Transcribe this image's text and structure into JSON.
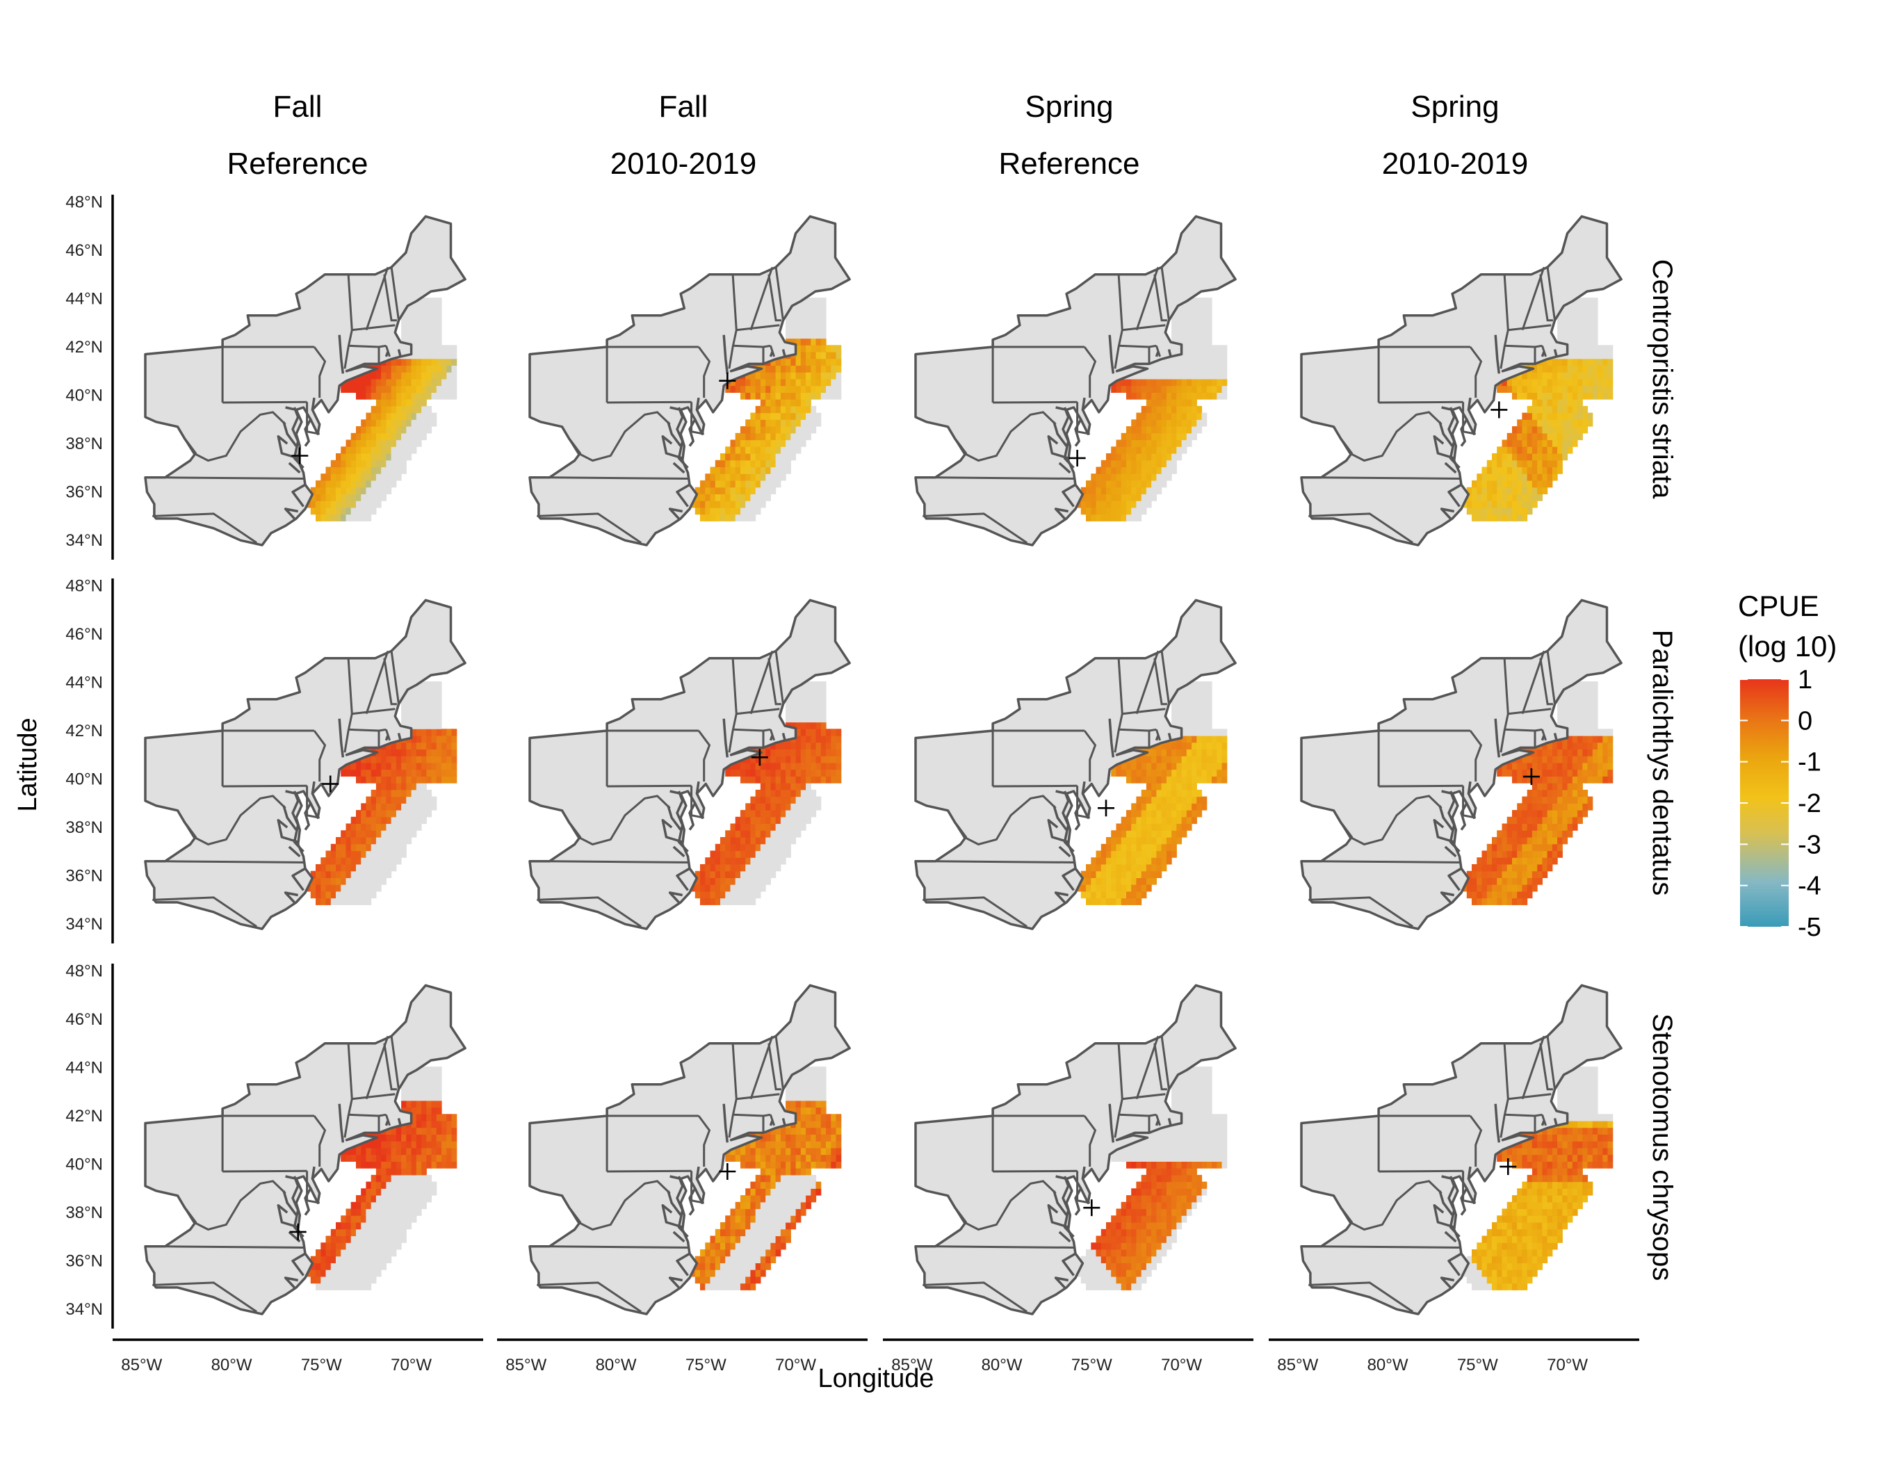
{
  "figure": {
    "columns": [
      {
        "line1": "Fall",
        "line2": "Reference"
      },
      {
        "line1": "Fall",
        "line2": "2010-2019"
      },
      {
        "line1": "Spring",
        "line2": "Reference"
      },
      {
        "line1": "Spring",
        "line2": "2010-2019"
      }
    ],
    "rows": [
      {
        "species": "Centropristis striata"
      },
      {
        "species": "Paralichthys dentatus"
      },
      {
        "species": "Stenotomus chrysops"
      }
    ],
    "axes": {
      "xlabel": "Longitude",
      "ylabel": "Latitude",
      "x_ticks": [
        "85°W",
        "80°W",
        "75°W",
        "70°W"
      ],
      "y_ticks": [
        "34°N",
        "36°N",
        "38°N",
        "40°N",
        "42°N",
        "44°N",
        "46°N",
        "48°N"
      ],
      "x_tick_values": [
        -85,
        -80,
        -75,
        -70
      ],
      "y_tick_values": [
        34,
        36,
        38,
        40,
        42,
        44,
        46,
        48
      ],
      "lon_range": [
        -86.5,
        -66
      ],
      "lat_range": [
        33.2,
        48.3
      ]
    },
    "legend": {
      "title_line1": "CPUE",
      "title_line2": "(log 10)",
      "ticks": [
        "1",
        "0",
        "-1",
        "-2",
        "-3",
        "-4",
        "-5"
      ],
      "range": [
        -5,
        1
      ],
      "colors": [
        "#3a9bb8",
        "#86b8c4",
        "#d8c052",
        "#f2c21a",
        "#eba60f",
        "#e97416",
        "#e8351a"
      ]
    },
    "background_color": "#e0e0e0",
    "outline_color": "#555555",
    "centroids": [
      [
        {
          "lon": -76.2,
          "lat": 37.5
        },
        {
          "lon": -73.8,
          "lat": 40.6
        },
        {
          "lon": -75.8,
          "lat": 37.4
        },
        {
          "lon": -73.8,
          "lat": 39.4
        }
      ],
      [
        {
          "lon": -74.5,
          "lat": 39.8
        },
        {
          "lon": -72.0,
          "lat": 40.9
        },
        {
          "lon": -74.2,
          "lat": 38.8
        },
        {
          "lon": -72.0,
          "lat": 40.1
        }
      ],
      [
        {
          "lon": -76.3,
          "lat": 37.2
        },
        {
          "lon": -73.8,
          "lat": 39.7
        },
        {
          "lon": -75.0,
          "lat": 38.2
        },
        {
          "lon": -73.3,
          "lat": 39.9
        }
      ]
    ]
  }
}
